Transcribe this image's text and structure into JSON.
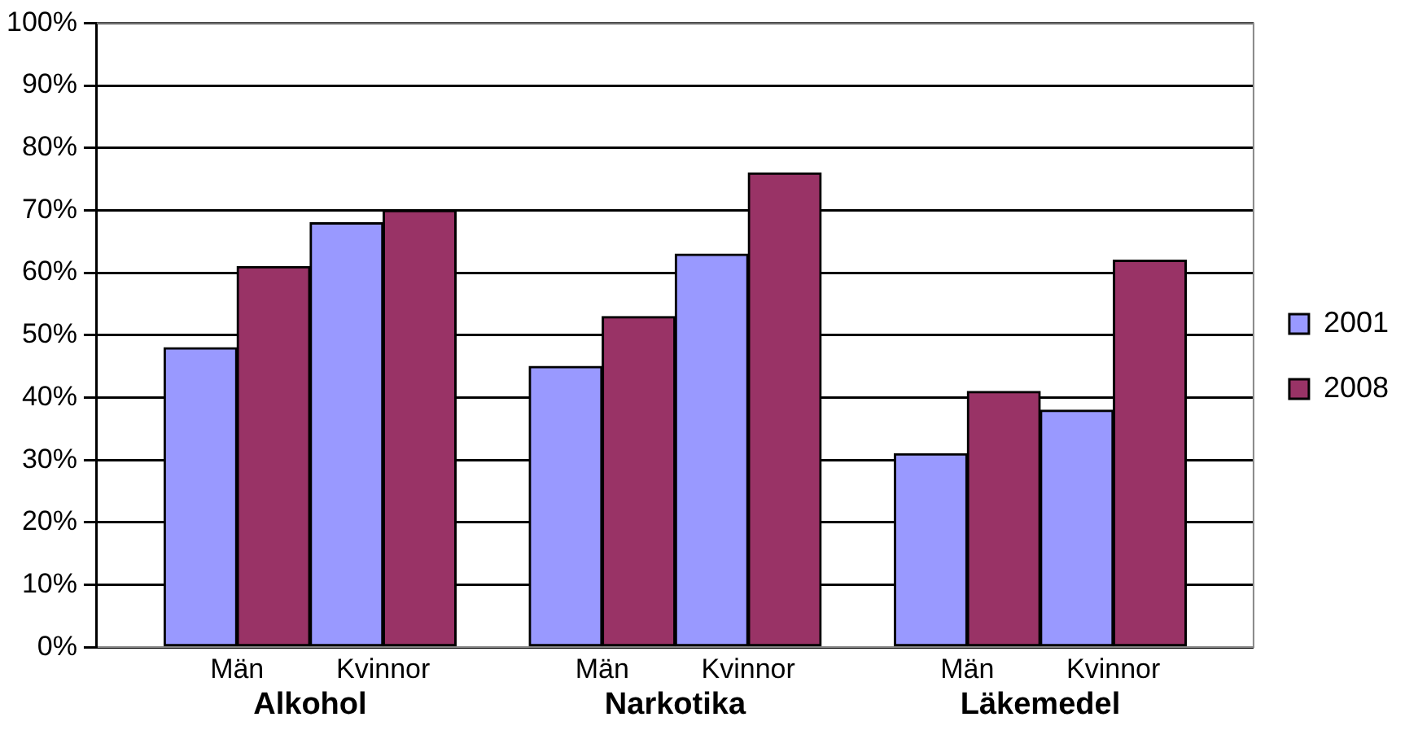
{
  "chart_data": {
    "type": "bar",
    "categories": [
      "Män",
      "Kvinnor",
      "Män",
      "Kvinnor",
      "Män",
      "Kvinnor"
    ],
    "annotations": [
      "Alkohol",
      "Narkotika",
      "Läkemedel"
    ],
    "series": [
      {
        "name": "2001",
        "color": "#9999ff",
        "values": [
          48,
          68,
          45,
          63,
          31,
          38
        ]
      },
      {
        "name": "2008",
        "color": "#993366",
        "values": [
          61,
          70,
          53,
          76,
          41,
          62
        ]
      }
    ],
    "ylim": [
      0,
      100
    ],
    "yticks": [
      {
        "value": 0,
        "label": "0%"
      },
      {
        "value": 10,
        "label": "10%"
      },
      {
        "value": 20,
        "label": "20%"
      },
      {
        "value": 30,
        "label": "30%"
      },
      {
        "value": 40,
        "label": "40%"
      },
      {
        "value": 50,
        "label": "50%"
      },
      {
        "value": 60,
        "label": "60%"
      },
      {
        "value": 70,
        "label": "70%"
      },
      {
        "value": 80,
        "label": "80%"
      },
      {
        "value": 90,
        "label": "90%"
      },
      {
        "value": 100,
        "label": "100%"
      }
    ],
    "grid": "y",
    "legend": "right"
  }
}
